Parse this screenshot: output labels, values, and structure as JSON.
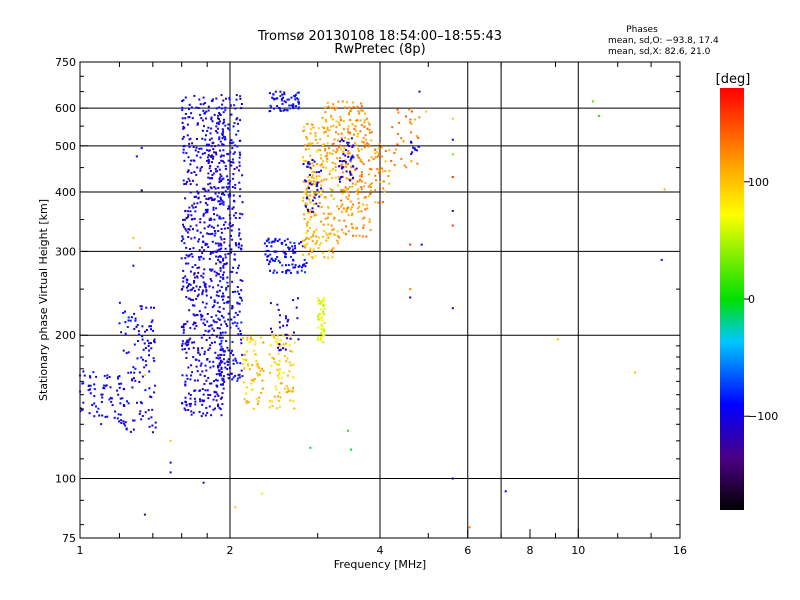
{
  "chart_data": {
    "type": "scatter",
    "title": "Tromsø 20130108 18:54:00–18:55:43",
    "subtitle": "RwPretec (8p)",
    "stats": {
      "heading": "Phases",
      "line1": "mean, sd,O: −93.8, 17.4",
      "line2": "mean, sd,X:  82.6, 21.0"
    },
    "xlabel": "Frequency [MHz]",
    "ylabel": "Stationary phase Virtual Height [km]",
    "x_scale": "log",
    "y_scale": "log",
    "xlim": [
      1,
      16
    ],
    "ylim": [
      75,
      750
    ],
    "x_ticks": [
      1,
      2,
      4,
      6,
      8,
      10,
      16
    ],
    "x_tick_labels": [
      "1",
      "2",
      "4",
      "6",
      "8",
      "10",
      "16"
    ],
    "x_grid": [
      2,
      4,
      6,
      7,
      10
    ],
    "y_ticks": [
      75,
      100,
      200,
      300,
      400,
      500,
      600,
      750
    ],
    "y_tick_labels": [
      "75",
      "100",
      "200",
      "300",
      "400",
      "500",
      "600",
      "750"
    ],
    "y_grid": [
      100,
      200,
      300,
      400,
      500,
      600
    ],
    "grid": true,
    "colorbar": {
      "label": "[deg]",
      "min": -180,
      "max": 180,
      "ticks": [
        100,
        0,
        -100
      ],
      "tick_labels": [
        "100",
        "0",
        "−100"
      ]
    },
    "clusters": [
      {
        "x_range": [
          1.0,
          1.22
        ],
        "y_range": [
          130,
          168
        ],
        "phase": -100,
        "n": 70
      },
      {
        "x_range": [
          1.2,
          1.42
        ],
        "y_range": [
          125,
          235
        ],
        "phase": -100,
        "n": 120
      },
      {
        "x_range": [
          1.6,
          1.95
        ],
        "y_range": [
          135,
          640
        ],
        "phase": -105,
        "n": 700
      },
      {
        "x_range": [
          1.9,
          2.12
        ],
        "y_range": [
          160,
          640
        ],
        "phase": -100,
        "n": 300
      },
      {
        "x_range": [
          2.12,
          2.35
        ],
        "y_range": [
          140,
          200
        ],
        "phase": 100,
        "n": 60
      },
      {
        "x_range": [
          2.4,
          2.7
        ],
        "y_range": [
          140,
          200
        ],
        "phase": 95,
        "n": 80
      },
      {
        "x_range": [
          2.35,
          2.85
        ],
        "y_range": [
          270,
          320
        ],
        "phase": -95,
        "n": 100
      },
      {
        "x_range": [
          2.4,
          2.75
        ],
        "y_range": [
          185,
          240
        ],
        "phase": -110,
        "n": 30
      },
      {
        "x_range": [
          2.4,
          2.75
        ],
        "y_range": [
          590,
          650
        ],
        "phase": -95,
        "n": 60
      },
      {
        "x_range": [
          2.8,
          3.05
        ],
        "y_range": [
          290,
          560
        ],
        "phase": 105,
        "n": 150
      },
      {
        "x_range": [
          2.8,
          3.05
        ],
        "y_range": [
          360,
          470
        ],
        "phase": -100,
        "n": 40
      },
      {
        "x_range": [
          3.0,
          3.1
        ],
        "y_range": [
          190,
          240
        ],
        "phase": 60,
        "n": 50
      },
      {
        "x_range": [
          3.05,
          3.3
        ],
        "y_range": [
          290,
          620
        ],
        "phase": 110,
        "n": 120
      },
      {
        "x_range": [
          3.3,
          3.85
        ],
        "y_range": [
          320,
          620
        ],
        "phase": 120,
        "n": 220
      },
      {
        "x_range": [
          3.3,
          3.6
        ],
        "y_range": [
          420,
          520
        ],
        "phase": -100,
        "n": 40
      },
      {
        "x_range": [
          3.8,
          4.2
        ],
        "y_range": [
          380,
          510
        ],
        "phase": 120,
        "n": 40
      },
      {
        "x_range": [
          4.2,
          4.8
        ],
        "y_range": [
          450,
          600
        ],
        "phase": 130,
        "n": 30
      },
      {
        "x_range": [
          4.6,
          4.8
        ],
        "y_range": [
          480,
          510
        ],
        "phase": -100,
        "n": 10
      }
    ],
    "scattered_points": [
      {
        "x": 1.3,
        "y": 475,
        "phase": -100
      },
      {
        "x": 1.33,
        "y": 495,
        "phase": -100
      },
      {
        "x": 1.33,
        "y": 403,
        "phase": -160
      },
      {
        "x": 1.28,
        "y": 280,
        "phase": -100
      },
      {
        "x": 1.28,
        "y": 320,
        "phase": 100
      },
      {
        "x": 1.32,
        "y": 305,
        "phase": 110
      },
      {
        "x": 1.35,
        "y": 165,
        "phase": 90
      },
      {
        "x": 1.52,
        "y": 120,
        "phase": 100
      },
      {
        "x": 1.52,
        "y": 108,
        "phase": -100
      },
      {
        "x": 1.52,
        "y": 103,
        "phase": -100
      },
      {
        "x": 1.77,
        "y": 98,
        "phase": -100
      },
      {
        "x": 1.35,
        "y": 84,
        "phase": -120
      },
      {
        "x": 2.05,
        "y": 87,
        "phase": 100
      },
      {
        "x": 2.32,
        "y": 93,
        "phase": 60
      },
      {
        "x": 2.9,
        "y": 116,
        "phase": -10
      },
      {
        "x": 3.45,
        "y": 126,
        "phase": 10
      },
      {
        "x": 3.5,
        "y": 115,
        "phase": -5
      },
      {
        "x": 4.6,
        "y": 250,
        "phase": 130
      },
      {
        "x": 4.6,
        "y": 240,
        "phase": -100
      },
      {
        "x": 4.6,
        "y": 310,
        "phase": 160
      },
      {
        "x": 4.85,
        "y": 310,
        "phase": -100
      },
      {
        "x": 5.6,
        "y": 365,
        "phase": -100
      },
      {
        "x": 5.6,
        "y": 340,
        "phase": 160
      },
      {
        "x": 5.6,
        "y": 570,
        "phase": 100
      },
      {
        "x": 5.6,
        "y": 515,
        "phase": -100
      },
      {
        "x": 5.6,
        "y": 480,
        "phase": 30
      },
      {
        "x": 5.6,
        "y": 430,
        "phase": 160
      },
      {
        "x": 5.6,
        "y": 228,
        "phase": -100
      },
      {
        "x": 5.6,
        "y": 100,
        "phase": -100
      },
      {
        "x": 6.05,
        "y": 79,
        "phase": 130
      },
      {
        "x": 7.15,
        "y": 94,
        "phase": -100
      },
      {
        "x": 9.1,
        "y": 196,
        "phase": 100
      },
      {
        "x": 10.7,
        "y": 620,
        "phase": 20
      },
      {
        "x": 11.0,
        "y": 578,
        "phase": 10
      },
      {
        "x": 13.0,
        "y": 167,
        "phase": 100
      },
      {
        "x": 14.7,
        "y": 288,
        "phase": -110
      },
      {
        "x": 14.9,
        "y": 405,
        "phase": 110
      },
      {
        "x": 4.8,
        "y": 650,
        "phase": -100
      },
      {
        "x": 4.95,
        "y": 590,
        "phase": 100
      }
    ]
  }
}
